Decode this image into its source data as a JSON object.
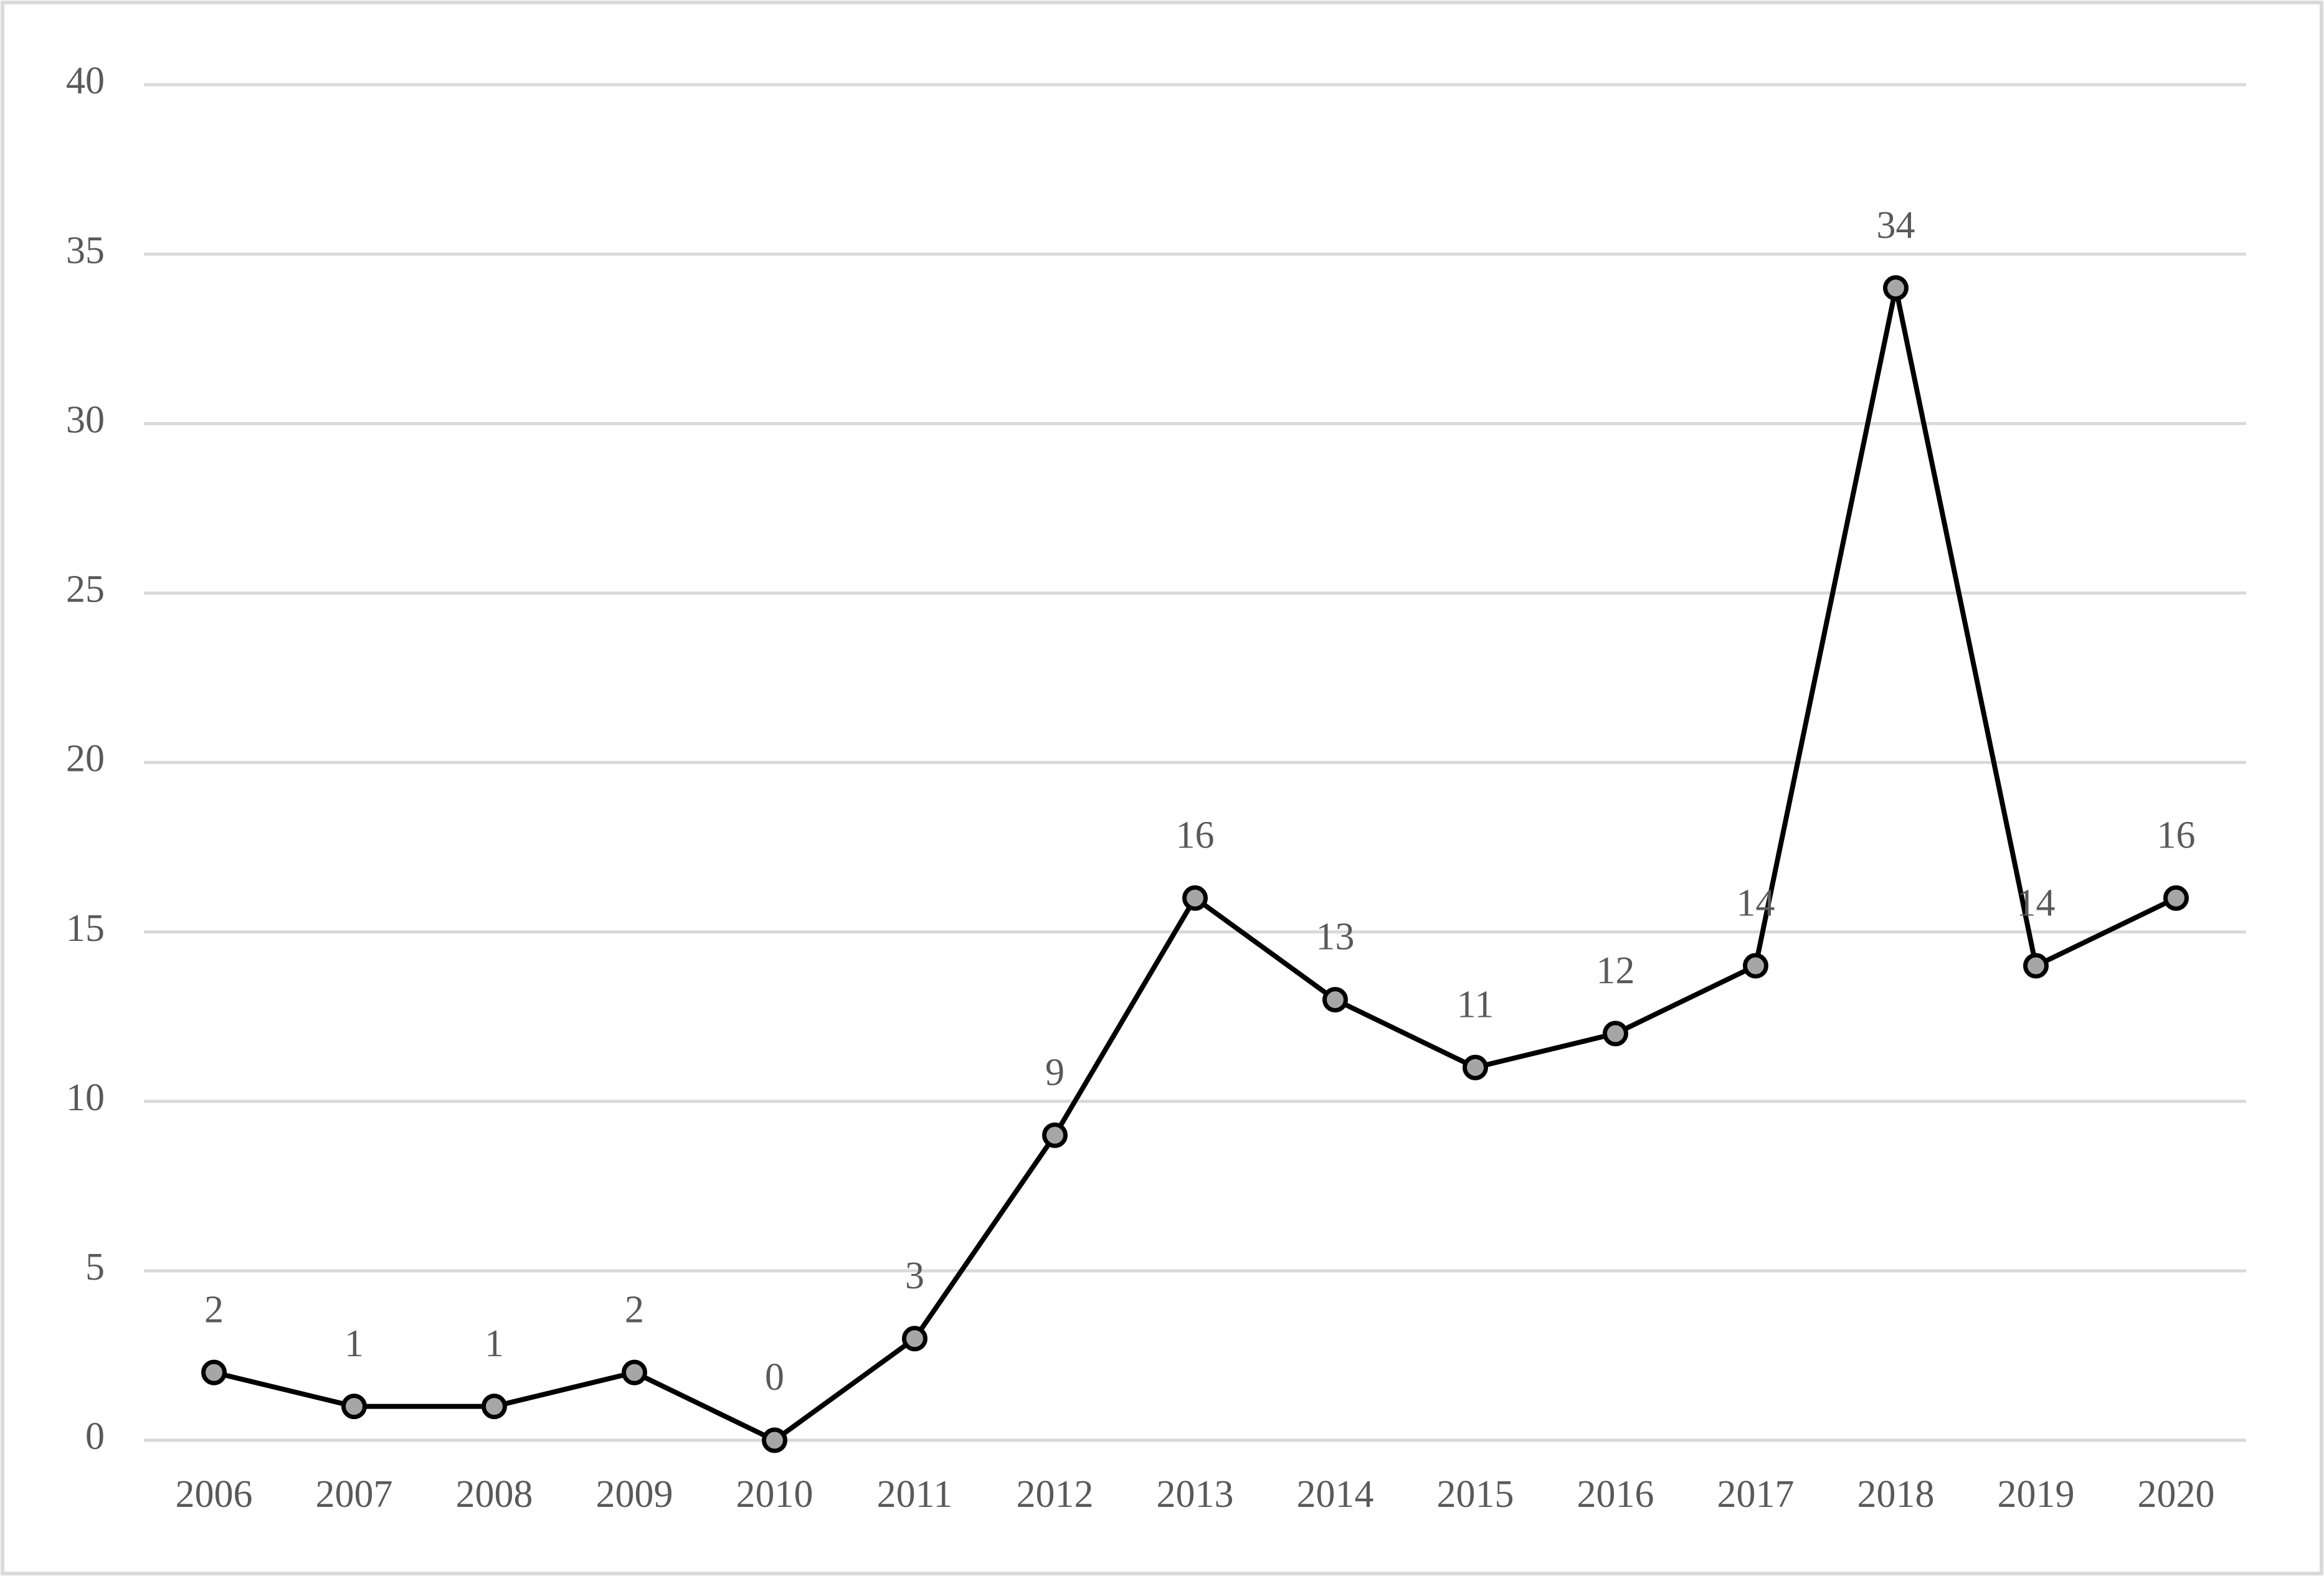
{
  "chart_data": {
    "type": "line",
    "categories": [
      "2006",
      "2007",
      "2008",
      "2009",
      "2010",
      "2011",
      "2012",
      "2013",
      "2014",
      "2015",
      "2016",
      "2017",
      "2018",
      "2019",
      "2020"
    ],
    "values": [
      2,
      1,
      1,
      2,
      0,
      3,
      9,
      16,
      13,
      11,
      12,
      14,
      34,
      14,
      16
    ],
    "color": "#000000",
    "marker_fill": "#a6a6a6",
    "ylim": [
      0,
      40
    ],
    "yticks": [
      0,
      5,
      10,
      15,
      20,
      25,
      30,
      35,
      40
    ],
    "grid": true
  }
}
